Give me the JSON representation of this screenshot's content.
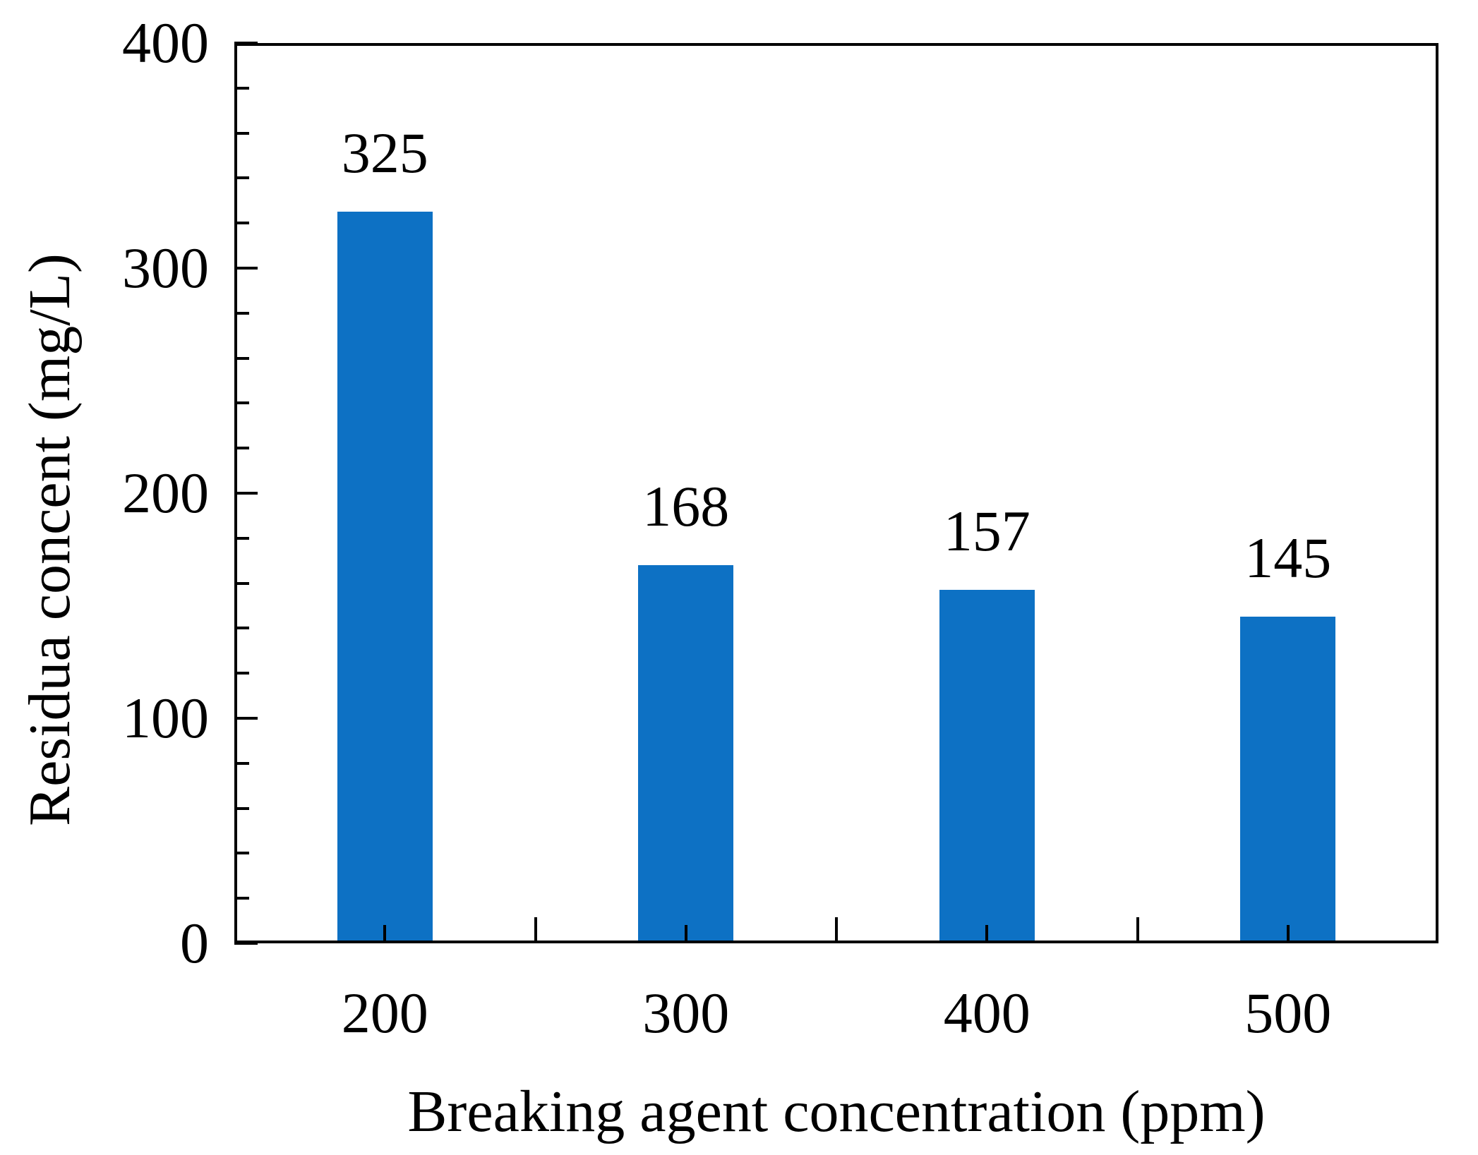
{
  "chart_data": {
    "type": "bar",
    "title": "",
    "categories": [
      "200",
      "300",
      "400",
      "500"
    ],
    "values": [
      325,
      168,
      157,
      145
    ],
    "bar_labels": [
      "325",
      "168",
      "157",
      "145"
    ],
    "xlabel": "Breaking agent concentration (ppm)",
    "ylabel": "Residua concent (mg/L)",
    "ylim": [
      0,
      400
    ],
    "y_major_ticks": [
      0,
      100,
      200,
      300,
      400
    ],
    "y_tick_labels": [
      "0",
      "100",
      "200",
      "300",
      "400"
    ],
    "y_minor_step": 20,
    "grid": false,
    "legend": null,
    "bar_color": "#0d71c4",
    "axis_color": "#000000",
    "text_color": "#000000",
    "background_color": "#ffffff"
  }
}
